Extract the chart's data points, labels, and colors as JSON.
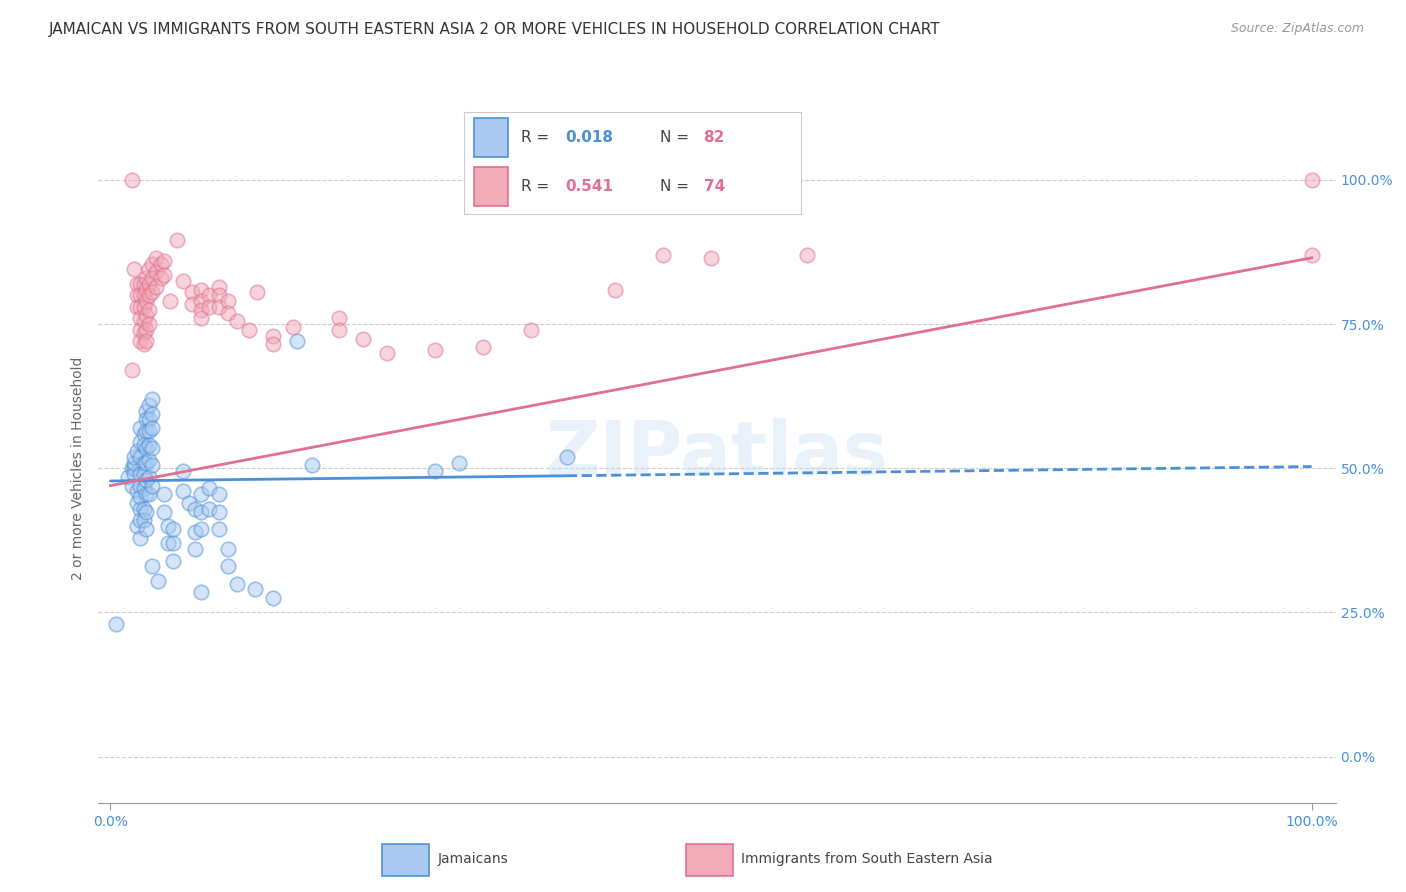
{
  "title": "JAMAICAN VS IMMIGRANTS FROM SOUTH EASTERN ASIA 2 OR MORE VEHICLES IN HOUSEHOLD CORRELATION CHART",
  "source": "Source: ZipAtlas.com",
  "ylabel": "2 or more Vehicles in Household",
  "ytick_values": [
    1.0,
    0.75,
    0.5,
    0.25,
    0.0
  ],
  "ytick_labels_right": [
    "100.0%",
    "75.0%",
    "50.0%",
    "25.0%",
    "0.0%"
  ],
  "blue_scatter": [
    [
      0.005,
      0.23
    ],
    [
      0.015,
      0.485
    ],
    [
      0.018,
      0.47
    ],
    [
      0.018,
      0.5
    ],
    [
      0.02,
      0.5
    ],
    [
      0.02,
      0.49
    ],
    [
      0.02,
      0.51
    ],
    [
      0.02,
      0.52
    ],
    [
      0.022,
      0.53
    ],
    [
      0.022,
      0.46
    ],
    [
      0.022,
      0.44
    ],
    [
      0.022,
      0.4
    ],
    [
      0.025,
      0.57
    ],
    [
      0.025,
      0.545
    ],
    [
      0.025,
      0.52
    ],
    [
      0.025,
      0.49
    ],
    [
      0.025,
      0.47
    ],
    [
      0.025,
      0.45
    ],
    [
      0.025,
      0.43
    ],
    [
      0.025,
      0.41
    ],
    [
      0.025,
      0.38
    ],
    [
      0.028,
      0.56
    ],
    [
      0.028,
      0.54
    ],
    [
      0.028,
      0.51
    ],
    [
      0.028,
      0.49
    ],
    [
      0.028,
      0.465
    ],
    [
      0.028,
      0.43
    ],
    [
      0.028,
      0.41
    ],
    [
      0.03,
      0.6
    ],
    [
      0.03,
      0.585
    ],
    [
      0.03,
      0.565
    ],
    [
      0.03,
      0.535
    ],
    [
      0.03,
      0.51
    ],
    [
      0.03,
      0.48
    ],
    [
      0.03,
      0.455
    ],
    [
      0.03,
      0.425
    ],
    [
      0.03,
      0.395
    ],
    [
      0.032,
      0.61
    ],
    [
      0.032,
      0.585
    ],
    [
      0.032,
      0.565
    ],
    [
      0.032,
      0.54
    ],
    [
      0.032,
      0.515
    ],
    [
      0.032,
      0.485
    ],
    [
      0.032,
      0.455
    ],
    [
      0.035,
      0.62
    ],
    [
      0.035,
      0.595
    ],
    [
      0.035,
      0.57
    ],
    [
      0.035,
      0.535
    ],
    [
      0.035,
      0.505
    ],
    [
      0.035,
      0.47
    ],
    [
      0.035,
      0.33
    ],
    [
      0.04,
      0.305
    ],
    [
      0.045,
      0.455
    ],
    [
      0.045,
      0.425
    ],
    [
      0.048,
      0.4
    ],
    [
      0.048,
      0.37
    ],
    [
      0.052,
      0.395
    ],
    [
      0.052,
      0.37
    ],
    [
      0.052,
      0.34
    ],
    [
      0.06,
      0.495
    ],
    [
      0.06,
      0.46
    ],
    [
      0.065,
      0.44
    ],
    [
      0.07,
      0.43
    ],
    [
      0.07,
      0.39
    ],
    [
      0.07,
      0.36
    ],
    [
      0.075,
      0.455
    ],
    [
      0.075,
      0.425
    ],
    [
      0.075,
      0.395
    ],
    [
      0.075,
      0.285
    ],
    [
      0.082,
      0.465
    ],
    [
      0.082,
      0.43
    ],
    [
      0.09,
      0.455
    ],
    [
      0.09,
      0.425
    ],
    [
      0.09,
      0.395
    ],
    [
      0.098,
      0.36
    ],
    [
      0.098,
      0.33
    ],
    [
      0.105,
      0.3
    ],
    [
      0.12,
      0.29
    ],
    [
      0.135,
      0.275
    ],
    [
      0.155,
      0.72
    ],
    [
      0.168,
      0.505
    ],
    [
      0.27,
      0.495
    ],
    [
      0.29,
      0.51
    ],
    [
      0.38,
      0.52
    ]
  ],
  "pink_scatter": [
    [
      0.018,
      1.0
    ],
    [
      0.018,
      0.67
    ],
    [
      0.02,
      0.845
    ],
    [
      0.022,
      0.82
    ],
    [
      0.022,
      0.8
    ],
    [
      0.022,
      0.78
    ],
    [
      0.025,
      0.82
    ],
    [
      0.025,
      0.8
    ],
    [
      0.025,
      0.78
    ],
    [
      0.025,
      0.76
    ],
    [
      0.025,
      0.74
    ],
    [
      0.025,
      0.72
    ],
    [
      0.028,
      0.82
    ],
    [
      0.028,
      0.8
    ],
    [
      0.028,
      0.78
    ],
    [
      0.028,
      0.755
    ],
    [
      0.028,
      0.735
    ],
    [
      0.028,
      0.715
    ],
    [
      0.03,
      0.83
    ],
    [
      0.03,
      0.81
    ],
    [
      0.03,
      0.79
    ],
    [
      0.03,
      0.765
    ],
    [
      0.03,
      0.74
    ],
    [
      0.03,
      0.72
    ],
    [
      0.032,
      0.845
    ],
    [
      0.032,
      0.82
    ],
    [
      0.032,
      0.8
    ],
    [
      0.032,
      0.775
    ],
    [
      0.032,
      0.75
    ],
    [
      0.035,
      0.855
    ],
    [
      0.035,
      0.83
    ],
    [
      0.035,
      0.805
    ],
    [
      0.038,
      0.865
    ],
    [
      0.038,
      0.84
    ],
    [
      0.038,
      0.815
    ],
    [
      0.042,
      0.855
    ],
    [
      0.042,
      0.83
    ],
    [
      0.045,
      0.86
    ],
    [
      0.045,
      0.835
    ],
    [
      0.05,
      0.79
    ],
    [
      0.055,
      0.895
    ],
    [
      0.06,
      0.825
    ],
    [
      0.068,
      0.805
    ],
    [
      0.068,
      0.785
    ],
    [
      0.075,
      0.81
    ],
    [
      0.075,
      0.79
    ],
    [
      0.075,
      0.775
    ],
    [
      0.075,
      0.76
    ],
    [
      0.082,
      0.8
    ],
    [
      0.082,
      0.78
    ],
    [
      0.09,
      0.815
    ],
    [
      0.09,
      0.8
    ],
    [
      0.09,
      0.78
    ],
    [
      0.098,
      0.79
    ],
    [
      0.098,
      0.77
    ],
    [
      0.105,
      0.755
    ],
    [
      0.115,
      0.74
    ],
    [
      0.122,
      0.805
    ],
    [
      0.135,
      0.73
    ],
    [
      0.135,
      0.715
    ],
    [
      0.152,
      0.745
    ],
    [
      0.19,
      0.76
    ],
    [
      0.19,
      0.74
    ],
    [
      0.21,
      0.725
    ],
    [
      0.23,
      0.7
    ],
    [
      0.27,
      0.705
    ],
    [
      0.31,
      0.71
    ],
    [
      0.35,
      0.74
    ],
    [
      0.42,
      0.81
    ],
    [
      0.46,
      0.87
    ],
    [
      0.5,
      0.865
    ],
    [
      0.58,
      0.87
    ],
    [
      1.0,
      1.0
    ],
    [
      1.0,
      0.87
    ]
  ],
  "blue_line_solid": {
    "x0": 0.0,
    "y0": 0.478,
    "x1": 0.38,
    "y1": 0.487
  },
  "blue_line_dashed": {
    "x0": 0.38,
    "y0": 0.487,
    "x1": 1.0,
    "y1": 0.503
  },
  "pink_line": {
    "x0": 0.0,
    "y0": 0.47,
    "x1": 1.0,
    "y1": 0.865
  },
  "scatter_size": 110,
  "scatter_alpha": 0.5,
  "blue_color": "#4a90d9",
  "pink_color": "#e07090",
  "blue_face": "#aac8f0",
  "pink_face": "#f0aab8",
  "title_fontsize": 11,
  "axis_label_fontsize": 10,
  "tick_fontsize": 10,
  "right_tick_color": "#4a90d9",
  "watermark": "ZIPatlas",
  "background_color": "#ffffff",
  "grid_color": "#cccccc",
  "xlim": [
    -0.01,
    1.02
  ],
  "ylim": [
    -0.08,
    1.08
  ]
}
